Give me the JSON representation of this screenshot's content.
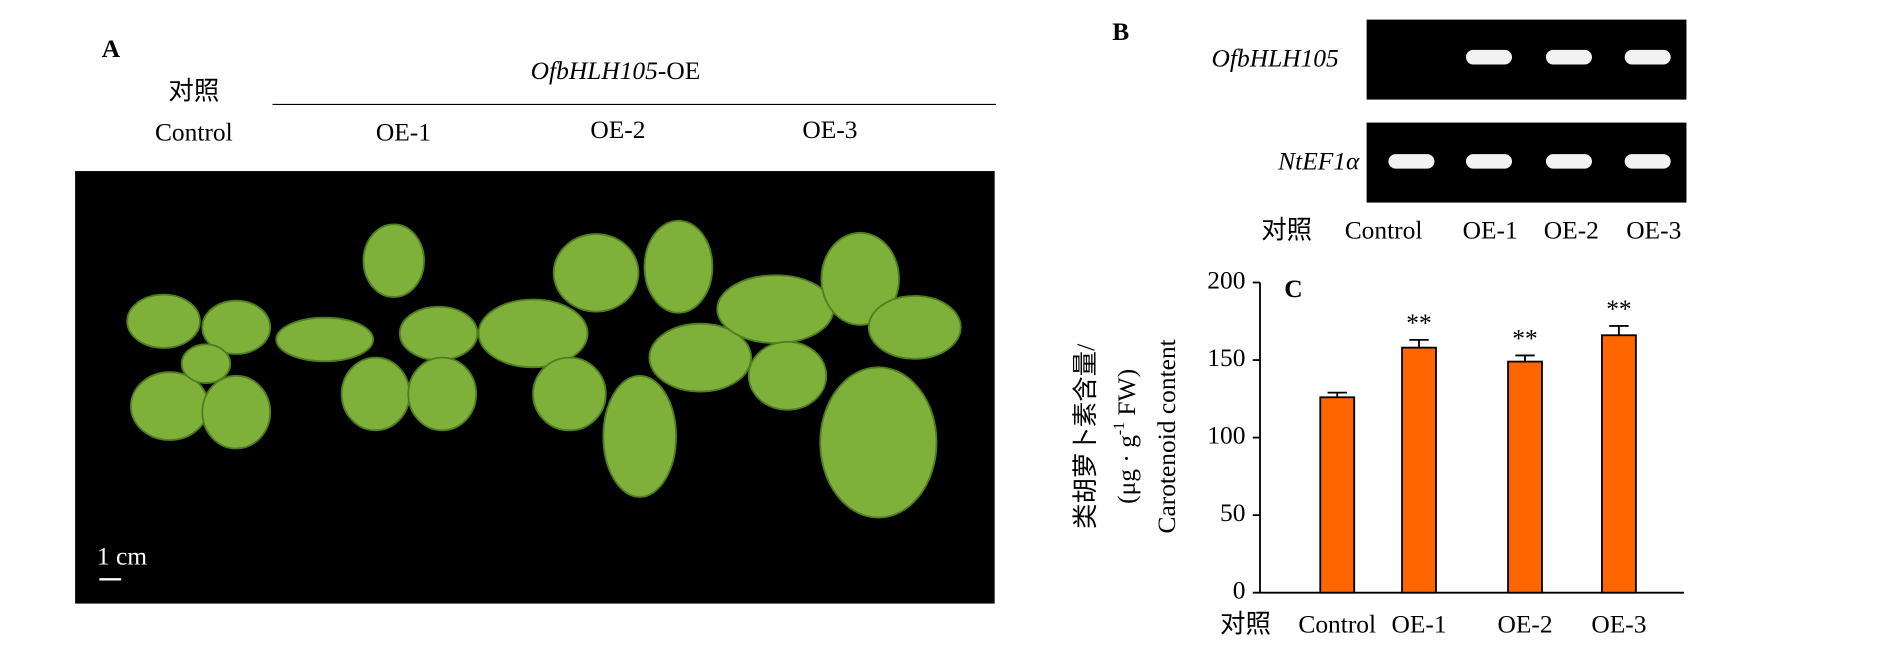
{
  "panel_a": {
    "label": "A",
    "control_cn": "对照",
    "control_en": "Control",
    "group_title": [
      "OfbHLH105",
      "-OE"
    ],
    "lines": [
      "OE-1",
      "OE-2",
      "OE-3"
    ],
    "scale_bar": "1 cm"
  },
  "panel_b": {
    "label": "B",
    "genes": [
      "OfbHLH105",
      "NtEF1α"
    ],
    "lanes_prefix": "对照",
    "lanes": [
      "Control",
      "OE-1",
      "OE-2",
      "OE-3"
    ]
  },
  "chart_data": {
    "type": "bar",
    "panel_label": "C",
    "y_label_cn": "类胡萝卜素含量/",
    "y_label_unit": [
      "(μg · g",
      "-1",
      " FW)"
    ],
    "y_label_en": "Carotenoid content",
    "category_prefix": "对照",
    "categories": [
      "Control",
      "OE-1",
      "OE-2",
      "OE-3"
    ],
    "values": [
      126,
      158,
      149,
      166
    ],
    "errors": [
      3,
      5,
      4,
      6
    ],
    "significance": [
      null,
      "**",
      "**",
      "**"
    ],
    "color": "#ff6600",
    "ylim": [
      0,
      200
    ],
    "yticks": [
      0,
      50,
      100,
      150,
      200
    ]
  }
}
